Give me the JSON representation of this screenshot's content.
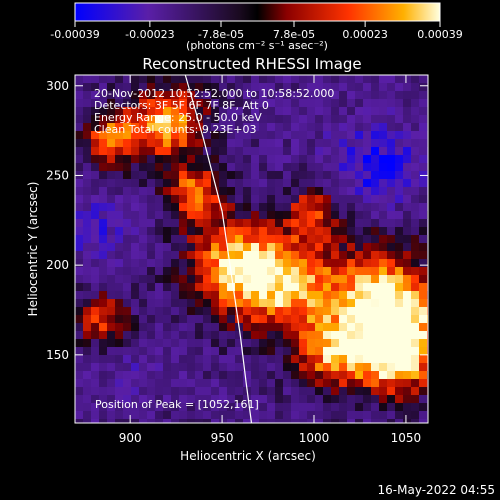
{
  "title": "Reconstructed RHESSI Image",
  "colorbar": {
    "tick_labels": [
      "-0.00039",
      "-0.00023",
      "-7.8e-05",
      "7.8e-05",
      "0.00023",
      "0.00039"
    ],
    "tick_values": [
      -0.00039,
      -0.00023,
      -7.8e-05,
      7.8e-05,
      0.00023,
      0.00039
    ],
    "range": [
      -0.00039,
      0.00039
    ],
    "unit_label": "(photons cm⁻² s⁻¹ asec⁻²)",
    "colors": [
      "#0000ff",
      "#5a1fa8",
      "#000000",
      "#8b0000",
      "#ff3300",
      "#ffb000",
      "#ffffe0"
    ]
  },
  "annotations": [
    "20-Nov-2012 10:52:52.000 to 10:58:52.000",
    "Detectors: 3F 5F 6F 7F 8F, Att 0",
    "Energy Range: 25.0 - 50.0 keV",
    "Clean     Total counts: 9.23E+03"
  ],
  "peak_label": "Position of Peak = [1052,161]",
  "timestamp": "16-May-2022 04:55",
  "chart_data": {
    "type": "heatmap",
    "title": "Reconstructed RHESSI Image",
    "xlabel": "Heliocentric X (arcsec)",
    "ylabel": "Heliocentric Y (arcsec)",
    "xlim": [
      870,
      1062
    ],
    "ylim": [
      112,
      306
    ],
    "x_ticks": [
      900,
      950,
      1000,
      1050
    ],
    "y_ticks": [
      150,
      200,
      250,
      300
    ],
    "peak": [
      1052,
      161
    ],
    "limb_curve": [
      [
        930,
        306
      ],
      [
        940,
        270
      ],
      [
        950,
        230
      ],
      [
        955,
        195
      ],
      [
        960,
        160
      ],
      [
        963,
        135
      ],
      [
        966,
        112
      ]
    ],
    "hotspots": [
      {
        "x": 920,
        "y": 280,
        "intensity": 0.85,
        "radius": 20
      },
      {
        "x": 935,
        "y": 240,
        "intensity": 0.6,
        "radius": 16
      },
      {
        "x": 955,
        "y": 200,
        "intensity": 0.7,
        "radius": 25
      },
      {
        "x": 985,
        "y": 190,
        "intensity": 0.75,
        "radius": 28
      },
      {
        "x": 1040,
        "y": 180,
        "intensity": 1.0,
        "radius": 30
      },
      {
        "x": 1045,
        "y": 150,
        "intensity": 0.9,
        "radius": 22
      },
      {
        "x": 1010,
        "y": 150,
        "intensity": 0.55,
        "radius": 20
      },
      {
        "x": 890,
        "y": 270,
        "intensity": 0.6,
        "radius": 15
      },
      {
        "x": 885,
        "y": 170,
        "intensity": 0.45,
        "radius": 14
      },
      {
        "x": 1000,
        "y": 230,
        "intensity": 0.4,
        "radius": 14
      }
    ],
    "coldspots": [
      {
        "x": 1035,
        "y": 255,
        "intensity": -0.9,
        "radius": 22
      },
      {
        "x": 880,
        "y": 220,
        "intensity": -0.7,
        "radius": 18
      },
      {
        "x": 900,
        "y": 140,
        "intensity": -0.5,
        "radius": 18
      },
      {
        "x": 1000,
        "y": 280,
        "intensity": -0.4,
        "radius": 20
      },
      {
        "x": 1060,
        "y": 200,
        "intensity": -0.5,
        "radius": 14
      }
    ]
  }
}
